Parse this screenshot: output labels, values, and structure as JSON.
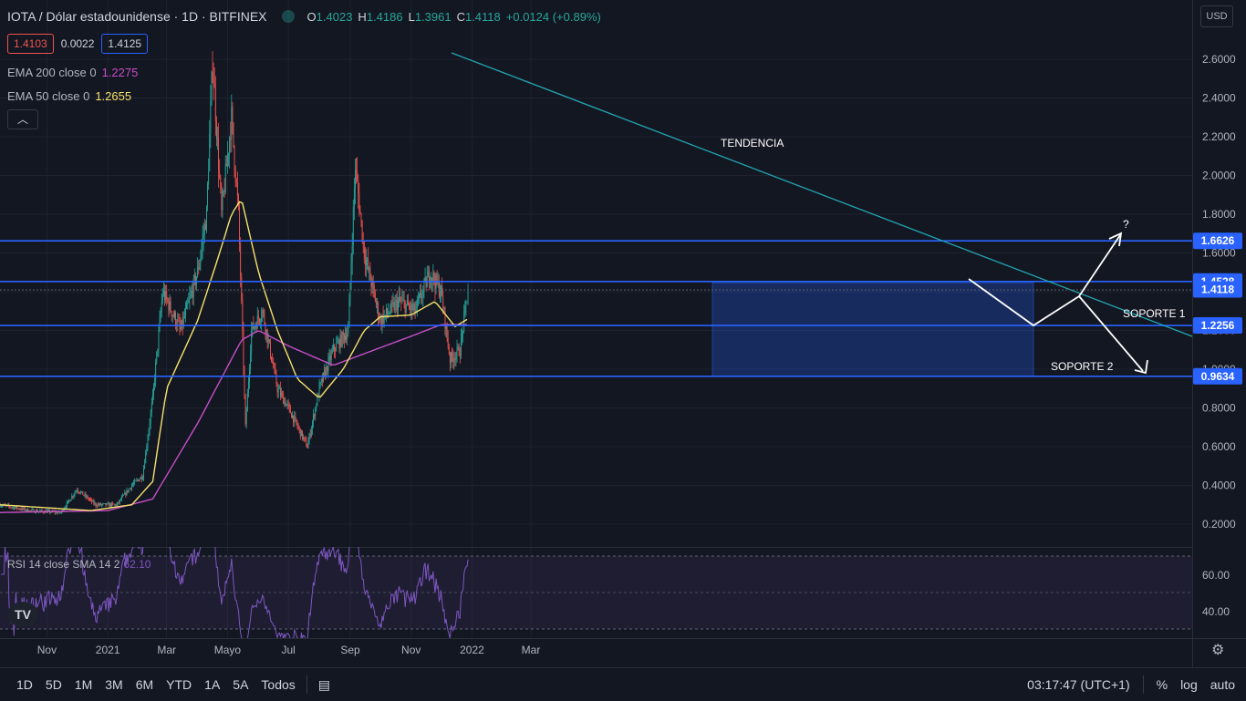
{
  "header": {
    "symbol": "IOTA / Dólar estadounidense · 1D · BITFINEX",
    "ohlc": {
      "o_label": "O",
      "o": "1.4023",
      "h_label": "H",
      "h": "1.4186",
      "l_label": "L",
      "l": "1.3961",
      "c_label": "C",
      "c": "1.4118",
      "change": "+0.0124 (+0.89%)"
    }
  },
  "quote": {
    "bid": "1.4103",
    "spread": "0.0022",
    "ask": "1.4125"
  },
  "indicators": {
    "ema200": {
      "label": "EMA 200 close 0",
      "value": "1.2275",
      "color": "#c74fc7"
    },
    "ema50": {
      "label": "EMA 50 close 0",
      "value": "1.2655",
      "color": "#f7e26b"
    },
    "collapse_icon": "chevron-up-icon"
  },
  "rsi": {
    "label": "RSI 14 close SMA 14 2",
    "value": "62.10",
    "ticks": [
      "60.00",
      "40.00"
    ]
  },
  "currency_button": "USD",
  "colors": {
    "up": "#26a69a",
    "down": "#ef5350",
    "hline": "#2962ff",
    "trend": "#22a6b3",
    "rsi": "#7e57c2",
    "background": "#131722"
  },
  "bottom_bar": {
    "ranges": [
      "1D",
      "5D",
      "1M",
      "3M",
      "6M",
      "YTD",
      "1A",
      "5A",
      "Todos"
    ],
    "compare_icon": "calendar-range-icon",
    "time": "03:17:47 (UTC+1)",
    "percent": "%",
    "log": "log",
    "auto": "auto"
  },
  "logo": "TV",
  "chart_data": {
    "type": "candlestick",
    "y_ticks": [
      "0.2000",
      "0.4000",
      "0.6000",
      "0.8000",
      "1.0000",
      "1.2000",
      "1.4000",
      "1.6000",
      "1.8000",
      "2.0000",
      "2.2000",
      "2.4000",
      "2.6000"
    ],
    "x_ticks": [
      "Nov",
      "2021",
      "Mar",
      "Mayo",
      "Jul",
      "Sep",
      "Nov",
      "2022",
      "Mar"
    ],
    "ylim": [
      0.2,
      2.6
    ],
    "price_tags": [
      {
        "value": "1.6626",
        "kind": "level"
      },
      {
        "value": "1.4528",
        "kind": "level"
      },
      {
        "value": "1.4118",
        "kind": "last"
      },
      {
        "value": "1.2256",
        "kind": "level"
      },
      {
        "value": "0.9634",
        "kind": "level"
      }
    ],
    "annotations": [
      "TENDENCIA",
      "SOPORTE 1",
      "SOPORTE 2",
      "?"
    ],
    "price_path": [
      [
        "2020-09-15",
        0.3
      ],
      [
        "2020-10-15",
        0.27
      ],
      [
        "2020-11-15",
        0.26
      ],
      [
        "2020-12-01",
        0.38
      ],
      [
        "2020-12-20",
        0.3
      ],
      [
        "2021-01-10",
        0.3
      ],
      [
        "2021-01-25",
        0.4
      ],
      [
        "2021-02-05",
        0.45
      ],
      [
        "2021-02-15",
        0.85
      ],
      [
        "2021-02-25",
        1.4
      ],
      [
        "2021-03-15",
        1.2
      ],
      [
        "2021-04-01",
        1.5
      ],
      [
        "2021-04-10",
        1.8
      ],
      [
        "2021-04-16",
        2.6
      ],
      [
        "2021-04-25",
        1.8
      ],
      [
        "2021-05-05",
        2.3
      ],
      [
        "2021-05-12",
        1.8
      ],
      [
        "2021-05-19",
        0.7
      ],
      [
        "2021-05-25",
        1.2
      ],
      [
        "2021-06-05",
        1.3
      ],
      [
        "2021-06-20",
        0.9
      ],
      [
        "2021-07-01",
        0.8
      ],
      [
        "2021-07-20",
        0.6
      ],
      [
        "2021-08-01",
        0.9
      ],
      [
        "2021-08-15",
        1.1
      ],
      [
        "2021-08-30",
        1.2
      ],
      [
        "2021-09-06",
        2.05
      ],
      [
        "2021-09-15",
        1.6
      ],
      [
        "2021-10-01",
        1.25
      ],
      [
        "2021-10-20",
        1.35
      ],
      [
        "2021-11-05",
        1.3
      ],
      [
        "2021-11-20",
        1.5
      ],
      [
        "2021-12-01",
        1.4
      ],
      [
        "2021-12-10",
        1.05
      ],
      [
        "2021-12-20",
        1.1
      ],
      [
        "2021-12-28",
        1.41
      ]
    ],
    "ema50_path": [
      [
        "2020-09-15",
        0.3
      ],
      [
        "2020-12-15",
        0.27
      ],
      [
        "2021-01-25",
        0.3
      ],
      [
        "2021-02-15",
        0.42
      ],
      [
        "2021-03-01",
        0.9
      ],
      [
        "2021-04-01",
        1.25
      ],
      [
        "2021-04-20",
        1.55
      ],
      [
        "2021-05-05",
        1.8
      ],
      [
        "2021-05-15",
        1.88
      ],
      [
        "2021-06-01",
        1.5
      ],
      [
        "2021-06-20",
        1.2
      ],
      [
        "2021-07-10",
        0.95
      ],
      [
        "2021-08-01",
        0.85
      ],
      [
        "2021-08-25",
        1.0
      ],
      [
        "2021-09-15",
        1.2
      ],
      [
        "2021-10-01",
        1.27
      ],
      [
        "2021-11-01",
        1.28
      ],
      [
        "2021-11-25",
        1.35
      ],
      [
        "2021-12-15",
        1.22
      ],
      [
        "2021-12-28",
        1.26
      ]
    ],
    "ema200_path": [
      [
        "2020-09-15",
        0.26
      ],
      [
        "2021-01-01",
        0.27
      ],
      [
        "2021-02-15",
        0.33
      ],
      [
        "2021-04-01",
        0.72
      ],
      [
        "2021-05-15",
        1.15
      ],
      [
        "2021-06-01",
        1.2
      ],
      [
        "2021-07-01",
        1.12
      ],
      [
        "2021-08-15",
        1.02
      ],
      [
        "2021-09-15",
        1.08
      ],
      [
        "2021-11-01",
        1.17
      ],
      [
        "2021-12-01",
        1.23
      ],
      [
        "2021-12-28",
        1.23
      ]
    ]
  }
}
